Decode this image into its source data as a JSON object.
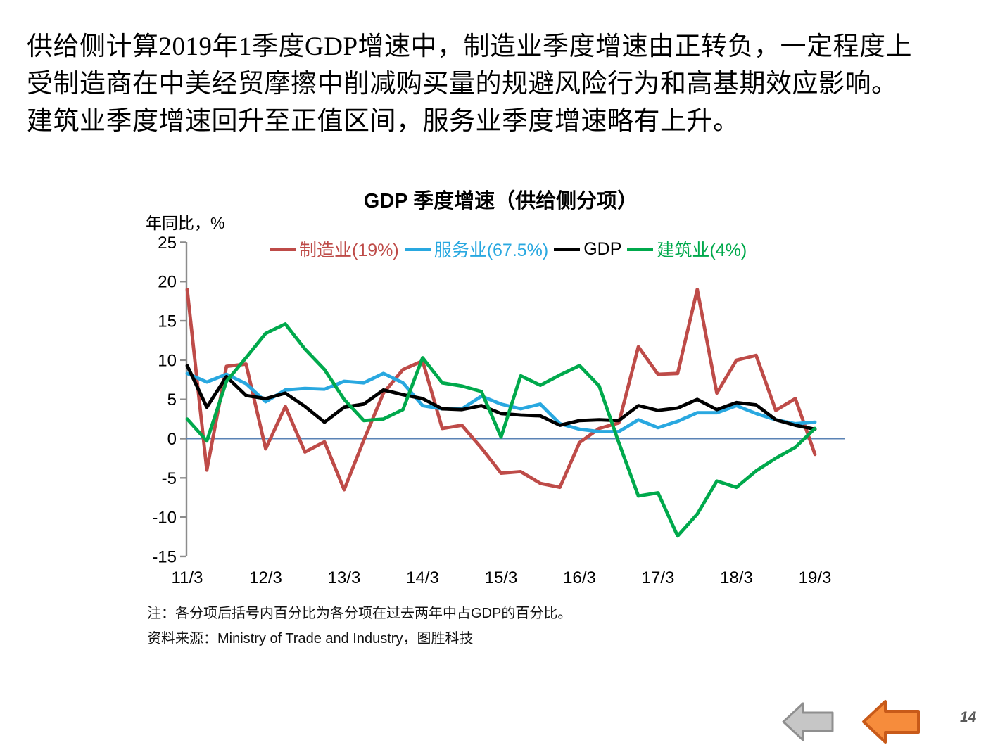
{
  "slide": {
    "paragraph_lines": [
      "供给侧计算2019年1季度GDP增速中，制造业季度增速由正转负，一定程度上",
      "受制造商在中美经贸摩擦中削减购买量的规避风险行为和高基期效应影响。",
      "建筑业季度增速回升至正值区间，服务业季度增速略有上升。"
    ],
    "page_number": "14"
  },
  "chart": {
    "title": "GDP 季度增速（供给侧分项）",
    "y_axis_label": "年同比，%",
    "legend": [
      {
        "label": "制造业(19%)",
        "color": "#BE4B48"
      },
      {
        "label": "服务业(67.5%)",
        "color": "#29A8E0"
      },
      {
        "label": "GDP",
        "color": "#000000"
      },
      {
        "label": "建筑业(4%)",
        "color": "#00A94C"
      }
    ]
  },
  "chart_data": {
    "type": "line",
    "title": "GDP 季度增速（供给侧分项）",
    "ylabel": "年同比，%",
    "x": [
      "11/3",
      "11/6",
      "11/9",
      "11/12",
      "12/3",
      "12/6",
      "12/9",
      "12/12",
      "13/3",
      "13/6",
      "13/9",
      "13/12",
      "14/3",
      "14/6",
      "14/9",
      "14/12",
      "15/3",
      "15/6",
      "15/9",
      "15/12",
      "16/3",
      "16/6",
      "16/9",
      "16/12",
      "17/3",
      "17/6",
      "17/9",
      "17/12",
      "18/3",
      "18/6",
      "18/9",
      "18/12",
      "19/3"
    ],
    "x_tick_labels": [
      "11/3",
      "12/3",
      "13/3",
      "14/3",
      "15/3",
      "16/3",
      "17/3",
      "18/3",
      "19/3"
    ],
    "y_ticks": [
      25,
      20,
      15,
      10,
      5,
      0,
      -5,
      -10,
      -15
    ],
    "ylim": [
      -15,
      25
    ],
    "grid": false,
    "legend_position": "top",
    "zero_line": true,
    "zero_line_color": "#5B83B5",
    "axis_color": "#8C8C8C",
    "series": [
      {
        "name": "制造业(19%)",
        "color": "#BE4B48",
        "values": [
          19.0,
          -4.0,
          9.2,
          9.5,
          -1.3,
          4.1,
          -1.7,
          -0.4,
          -6.5,
          -0.2,
          5.8,
          8.8,
          9.9,
          1.3,
          1.7,
          -1.2,
          -4.4,
          -4.2,
          -5.7,
          -6.2,
          -0.5,
          1.3,
          2.0,
          11.7,
          8.2,
          8.3,
          19.0,
          5.8,
          10.0,
          10.6,
          3.6,
          5.1,
          -2.0
        ]
      },
      {
        "name": "服务业(67.5%)",
        "color": "#29A8E0",
        "values": [
          8.3,
          7.2,
          8.2,
          7.0,
          4.7,
          6.2,
          6.4,
          6.3,
          7.3,
          7.1,
          8.3,
          7.1,
          4.2,
          3.8,
          3.8,
          5.4,
          4.4,
          3.8,
          4.4,
          1.9,
          1.2,
          0.9,
          0.9,
          2.4,
          1.4,
          2.2,
          3.3,
          3.3,
          4.2,
          3.2,
          2.4,
          1.9,
          2.1
        ]
      },
      {
        "name": "GDP",
        "color": "#000000",
        "values": [
          9.3,
          4.0,
          7.9,
          5.5,
          5.1,
          5.8,
          4.1,
          2.1,
          4.0,
          4.4,
          6.2,
          5.6,
          5.1,
          3.8,
          3.7,
          4.2,
          3.2,
          3.0,
          2.9,
          1.7,
          2.3,
          2.4,
          2.3,
          4.2,
          3.6,
          3.9,
          5.0,
          3.7,
          4.6,
          4.3,
          2.4,
          1.7,
          1.2
        ]
      },
      {
        "name": "建筑业(4%)",
        "color": "#00A94C",
        "values": [
          2.5,
          -0.3,
          7.3,
          10.3,
          13.4,
          14.6,
          11.4,
          8.8,
          5.0,
          2.3,
          2.5,
          3.7,
          10.3,
          7.1,
          6.7,
          6.0,
          0.2,
          8.0,
          6.8,
          8.1,
          9.3,
          6.7,
          -0.5,
          -7.3,
          -6.9,
          -12.4,
          -9.6,
          -5.4,
          -6.2,
          -4.1,
          -2.5,
          -1.1,
          1.3
        ]
      }
    ]
  },
  "notes": {
    "line1": "注：各分项后括号内百分比为各分项在过去两年中占GDP的百分比。",
    "line2": "资料来源：Ministry of Trade and Industry，图胜科技"
  },
  "nav": {
    "back_arrow": {
      "fill": "#C6C6C6",
      "stroke": "#8F8F8F"
    },
    "forward_arrow": {
      "fill": "#F68C3C",
      "stroke": "#C85A19"
    }
  }
}
